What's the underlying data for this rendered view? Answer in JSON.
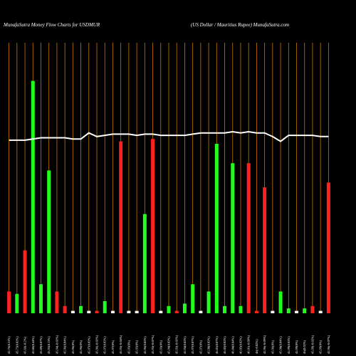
{
  "chart_data": {
    "type": "bar",
    "title": "MunafaSutra  Money Flow  Charts for USDMUR",
    "subtitle": "(US Dollar / Mauritius Rupee) MunafaSutra.com",
    "categories": [
      "45.76(0.31%)",
      "45.75(0.02%)",
      "45.66(-0.2%)",
      "45.86(0.44%)",
      "45.89(0.07%)",
      "45.95(0.13%)",
      "45.94(-0.02%)",
      "45.96(0.04%)",
      "45.96(0%)",
      "45.96(0%)",
      "45.97(0.02%)",
      "45.96(-0.02%)",
      "45.97(0.02%)",
      "45.97(0%)",
      "45.95(-0.04%)",
      "45.95(0%)",
      "45.95(0%)",
      "45.96(0.02%)",
      "45.93(-0.07%)",
      "45.93(0%)",
      "45.94(0.02%)",
      "45.93(-0.02%)",
      "45.94(0.02%)",
      "45.97(0.07%)",
      "45.97(0%)",
      "45.98(0.02%)",
      "46.01(0.07%)",
      "46.02(0.02%)",
      "46.04(0.04%)",
      "46.05(0.02%)",
      "46.01(-0.09%)",
      "46(-0.02%)",
      "45.96(-0.09%)",
      "45.96(0%)",
      "45.98(0.04%)",
      "45.99(0.02%)",
      "45.99(0%)",
      "46(0.02%)",
      "45.99(-0.02%)",
      "45.99(0%)",
      "45.96(-0.07%)"
    ],
    "series": [
      {
        "name": "Money Flow",
        "values": [
          9,
          8,
          26,
          96,
          12,
          59,
          9,
          3,
          1,
          3,
          1,
          1,
          5,
          1,
          71,
          1,
          1,
          41,
          72,
          1,
          3,
          1,
          4,
          12,
          1,
          9,
          70,
          3,
          62,
          3,
          62,
          1,
          52,
          1,
          9,
          2,
          1,
          2,
          3,
          1,
          54
        ],
        "colors": [
          "#ff2020",
          "#20ff20",
          "#ff2020",
          "#20ff20",
          "#20ff20",
          "#20ff20",
          "#ff2020",
          "#ff2020",
          "#ffffff",
          "#20ff20",
          "#ffffff",
          "#ff2020",
          "#20ff20",
          "#ffffff",
          "#ff2020",
          "#ffffff",
          "#ffffff",
          "#20ff20",
          "#ff2020",
          "#ffffff",
          "#20ff20",
          "#ff2020",
          "#20ff20",
          "#20ff20",
          "#ffffff",
          "#20ff20",
          "#20ff20",
          "#20ff20",
          "#20ff20",
          "#20ff20",
          "#ff2020",
          "#ff2020",
          "#ff2020",
          "#ffffff",
          "#20ff20",
          "#20ff20",
          "#ffffff",
          "#20ff20",
          "#ff2020",
          "#ffffff",
          "#ff2020"
        ]
      },
      {
        "name": "Price",
        "type": "line",
        "color": "#ffffff",
        "values": [
          71.5,
          71.5,
          71.5,
          72,
          72.5,
          72.5,
          72.5,
          72.5,
          72,
          72,
          74.5,
          73,
          73.5,
          74,
          74,
          74,
          73.5,
          74,
          74,
          73.5,
          73.5,
          73.5,
          73.5,
          74,
          74.5,
          74.5,
          74.5,
          74.5,
          75,
          74.5,
          75,
          74.5,
          74.5,
          73,
          71,
          73.5,
          73.5,
          73.5,
          73.5,
          73,
          73
        ]
      }
    ],
    "ylim": [
      0,
      100
    ],
    "grid_color": "#c87800"
  }
}
